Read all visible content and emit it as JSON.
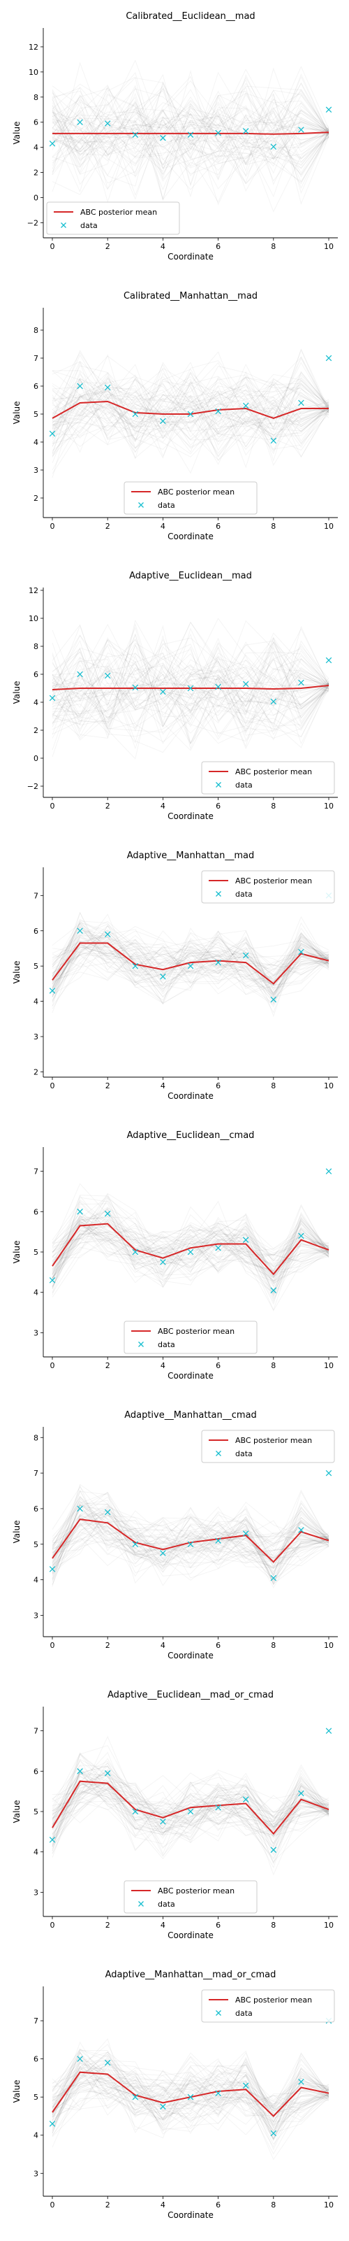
{
  "chart_data": [
    {
      "type": "line",
      "title": "Calibrated__Euclidean__mad",
      "xlabel": "Coordinate",
      "ylabel": "Value",
      "x": [
        0,
        1,
        2,
        3,
        4,
        5,
        6,
        7,
        8,
        9,
        10
      ],
      "xticks": [
        0,
        2,
        4,
        6,
        8,
        10
      ],
      "ylim": [
        -3.2,
        13.5
      ],
      "yticks": [
        -2,
        0,
        2,
        4,
        6,
        8,
        10,
        12
      ],
      "legend": "bottom-left",
      "series": [
        {
          "name": "ABC posterior mean",
          "kind": "line",
          "color": "#d62728",
          "values": [
            5.1,
            5.1,
            5.1,
            5.1,
            5.1,
            5.1,
            5.1,
            5.1,
            5.05,
            5.1,
            5.2
          ]
        },
        {
          "name": "data",
          "kind": "marker",
          "color": "#17becf",
          "values": [
            4.3,
            6.0,
            5.9,
            5.0,
            4.75,
            5.0,
            5.15,
            5.3,
            4.05,
            5.4,
            7.0
          ]
        }
      ],
      "band": {
        "values": [
          5.1,
          5.1,
          5.1,
          5.1,
          5.1,
          5.1,
          5.1,
          5.1,
          5.05,
          5.1,
          5.2
        ],
        "spread": [
          6.5,
          6.5,
          6.5,
          6.5,
          6.5,
          6.5,
          6.5,
          6.5,
          6.5,
          6.5,
          0.6
        ]
      }
    },
    {
      "type": "line",
      "title": "Calibrated__Manhattan__mad",
      "xlabel": "Coordinate",
      "ylabel": "Value",
      "x": [
        0,
        1,
        2,
        3,
        4,
        5,
        6,
        7,
        8,
        9,
        10
      ],
      "xticks": [
        0,
        2,
        4,
        6,
        8,
        10
      ],
      "ylim": [
        1.3,
        8.8
      ],
      "yticks": [
        2,
        3,
        4,
        5,
        6,
        7,
        8
      ],
      "legend": "bottom-center",
      "series": [
        {
          "name": "ABC posterior mean",
          "kind": "line",
          "color": "#d62728",
          "values": [
            4.85,
            5.4,
            5.45,
            5.05,
            5.0,
            5.0,
            5.15,
            5.2,
            4.85,
            5.2,
            5.2
          ]
        },
        {
          "name": "data",
          "kind": "marker",
          "color": "#17becf",
          "values": [
            4.3,
            6.0,
            5.95,
            5.0,
            4.75,
            5.0,
            5.1,
            5.3,
            4.05,
            5.4,
            7.0
          ]
        }
      ],
      "band": {
        "values": [
          4.85,
          5.4,
          5.45,
          5.05,
          5.0,
          5.0,
          5.15,
          5.2,
          4.85,
          5.2,
          5.2
        ],
        "spread": [
          2.5,
          2.5,
          2.5,
          2.5,
          2.5,
          2.5,
          2.5,
          2.5,
          2.5,
          2.5,
          0.4
        ]
      }
    },
    {
      "type": "line",
      "title": "Adaptive__Euclidean__mad",
      "xlabel": "Coordinate",
      "ylabel": "Value",
      "x": [
        0,
        1,
        2,
        3,
        4,
        5,
        6,
        7,
        8,
        9,
        10
      ],
      "xticks": [
        0,
        2,
        4,
        6,
        8,
        10
      ],
      "ylim": [
        -2.8,
        12.2
      ],
      "yticks": [
        -2,
        0,
        2,
        4,
        6,
        8,
        10,
        12
      ],
      "legend": "bottom-right",
      "series": [
        {
          "name": "ABC posterior mean",
          "kind": "line",
          "color": "#d62728",
          "values": [
            4.9,
            5.0,
            5.0,
            5.0,
            5.0,
            5.0,
            5.0,
            5.0,
            4.95,
            5.0,
            5.2
          ]
        },
        {
          "name": "data",
          "kind": "marker",
          "color": "#17becf",
          "values": [
            4.3,
            6.0,
            5.9,
            5.05,
            4.75,
            5.0,
            5.1,
            5.3,
            4.05,
            5.4,
            7.0
          ]
        }
      ],
      "band": {
        "values": [
          4.9,
          5.0,
          5.0,
          5.0,
          5.0,
          5.0,
          5.0,
          5.0,
          4.95,
          5.0,
          5.2
        ],
        "spread": [
          6.0,
          6.0,
          6.0,
          6.0,
          6.0,
          6.0,
          6.0,
          6.0,
          6.0,
          6.0,
          0.6
        ]
      }
    },
    {
      "type": "line",
      "title": "Adaptive__Manhattan__mad",
      "xlabel": "Coordinate",
      "ylabel": "Value",
      "x": [
        0,
        1,
        2,
        3,
        4,
        5,
        6,
        7,
        8,
        9,
        10
      ],
      "xticks": [
        0,
        2,
        4,
        6,
        8,
        10
      ],
      "ylim": [
        1.85,
        7.8
      ],
      "yticks": [
        2,
        3,
        4,
        5,
        6,
        7
      ],
      "legend": "top-right",
      "series": [
        {
          "name": "ABC posterior mean",
          "kind": "line",
          "color": "#d62728",
          "values": [
            4.6,
            5.65,
            5.65,
            5.05,
            4.9,
            5.1,
            5.15,
            5.1,
            4.5,
            5.35,
            5.15
          ]
        },
        {
          "name": "data",
          "kind": "marker",
          "color": "#17becf",
          "values": [
            4.3,
            6.0,
            5.9,
            5.0,
            4.7,
            5.0,
            5.1,
            5.3,
            4.05,
            5.4,
            7.0
          ]
        }
      ],
      "band": {
        "values": [
          4.6,
          5.65,
          5.65,
          5.05,
          4.9,
          5.1,
          5.15,
          5.1,
          4.5,
          5.35,
          5.15
        ],
        "spread": [
          1.3,
          1.3,
          1.3,
          1.3,
          1.3,
          1.3,
          1.3,
          1.3,
          1.3,
          1.3,
          0.35
        ]
      }
    },
    {
      "type": "line",
      "title": "Adaptive__Euclidean__cmad",
      "xlabel": "Coordinate",
      "ylabel": "Value",
      "x": [
        0,
        1,
        2,
        3,
        4,
        5,
        6,
        7,
        8,
        9,
        10
      ],
      "xticks": [
        0,
        2,
        4,
        6,
        8,
        10
      ],
      "ylim": [
        2.4,
        7.6
      ],
      "yticks": [
        3,
        4,
        5,
        6,
        7
      ],
      "legend": "bottom-center",
      "series": [
        {
          "name": "ABC posterior mean",
          "kind": "line",
          "color": "#d62728",
          "values": [
            4.65,
            5.65,
            5.7,
            5.05,
            4.85,
            5.1,
            5.2,
            5.2,
            4.45,
            5.3,
            5.05
          ]
        },
        {
          "name": "data",
          "kind": "marker",
          "color": "#17becf",
          "values": [
            4.3,
            6.0,
            5.95,
            5.0,
            4.75,
            5.0,
            5.1,
            5.3,
            4.05,
            5.4,
            7.0
          ]
        }
      ],
      "band": {
        "values": [
          4.65,
          5.65,
          5.7,
          5.05,
          4.85,
          5.1,
          5.2,
          5.2,
          4.45,
          5.3,
          5.05
        ],
        "spread": [
          1.2,
          1.2,
          1.2,
          1.2,
          1.2,
          1.2,
          1.2,
          1.2,
          1.2,
          1.2,
          0.3
        ]
      }
    },
    {
      "type": "line",
      "title": "Adaptive__Manhattan__cmad",
      "xlabel": "Coordinate",
      "ylabel": "Value",
      "x": [
        0,
        1,
        2,
        3,
        4,
        5,
        6,
        7,
        8,
        9,
        10
      ],
      "xticks": [
        0,
        2,
        4,
        6,
        8,
        10
      ],
      "ylim": [
        2.4,
        8.3
      ],
      "yticks": [
        3,
        4,
        5,
        6,
        7,
        8
      ],
      "legend": "top-right",
      "series": [
        {
          "name": "ABC posterior mean",
          "kind": "line",
          "color": "#d62728",
          "values": [
            4.6,
            5.7,
            5.6,
            5.05,
            4.85,
            5.05,
            5.15,
            5.25,
            4.5,
            5.35,
            5.1
          ]
        },
        {
          "name": "data",
          "kind": "marker",
          "color": "#17becf",
          "values": [
            4.3,
            6.0,
            5.9,
            5.0,
            4.75,
            5.0,
            5.1,
            5.3,
            4.05,
            5.4,
            7.0
          ]
        }
      ],
      "band": {
        "values": [
          4.6,
          5.7,
          5.6,
          5.05,
          4.85,
          5.05,
          5.15,
          5.25,
          4.5,
          5.35,
          5.1
        ],
        "spread": [
          1.3,
          1.3,
          1.3,
          1.3,
          1.3,
          1.3,
          1.3,
          1.3,
          1.3,
          1.3,
          0.3
        ]
      }
    },
    {
      "type": "line",
      "title": "Adaptive__Euclidean__mad_or_cmad",
      "xlabel": "Coordinate",
      "ylabel": "Value",
      "x": [
        0,
        1,
        2,
        3,
        4,
        5,
        6,
        7,
        8,
        9,
        10
      ],
      "xticks": [
        0,
        2,
        4,
        6,
        8,
        10
      ],
      "ylim": [
        2.4,
        7.6
      ],
      "yticks": [
        3,
        4,
        5,
        6,
        7
      ],
      "legend": "bottom-center",
      "series": [
        {
          "name": "ABC posterior mean",
          "kind": "line",
          "color": "#d62728",
          "values": [
            4.6,
            5.75,
            5.7,
            5.05,
            4.85,
            5.1,
            5.15,
            5.2,
            4.45,
            5.3,
            5.05
          ]
        },
        {
          "name": "data",
          "kind": "marker",
          "color": "#17becf",
          "values": [
            4.3,
            6.0,
            5.95,
            5.0,
            4.75,
            5.0,
            5.1,
            5.3,
            4.05,
            5.45,
            7.0
          ]
        }
      ],
      "band": {
        "values": [
          4.6,
          5.75,
          5.7,
          5.05,
          4.85,
          5.1,
          5.15,
          5.2,
          4.45,
          5.3,
          5.05
        ],
        "spread": [
          1.2,
          1.2,
          1.2,
          1.2,
          1.2,
          1.2,
          1.2,
          1.2,
          1.2,
          1.2,
          0.3
        ]
      }
    },
    {
      "type": "line",
      "title": "Adaptive__Manhattan__mad_or_cmad",
      "xlabel": "Coordinate",
      "ylabel": "Value",
      "x": [
        0,
        1,
        2,
        3,
        4,
        5,
        6,
        7,
        8,
        9,
        10
      ],
      "xticks": [
        0,
        2,
        4,
        6,
        8,
        10
      ],
      "ylim": [
        2.4,
        7.9
      ],
      "yticks": [
        3,
        4,
        5,
        6,
        7
      ],
      "legend": "top-right",
      "series": [
        {
          "name": "ABC posterior mean",
          "kind": "line",
          "color": "#d62728",
          "values": [
            4.6,
            5.65,
            5.6,
            5.05,
            4.85,
            5.0,
            5.15,
            5.2,
            4.5,
            5.25,
            5.1
          ]
        },
        {
          "name": "data",
          "kind": "marker",
          "color": "#17becf",
          "values": [
            4.3,
            6.0,
            5.9,
            5.0,
            4.75,
            5.0,
            5.1,
            5.3,
            4.05,
            5.4,
            7.0
          ]
        }
      ],
      "band": {
        "values": [
          4.6,
          5.65,
          5.6,
          5.05,
          4.85,
          5.0,
          5.15,
          5.2,
          4.5,
          5.25,
          5.1
        ],
        "spread": [
          1.3,
          1.3,
          1.3,
          1.3,
          1.3,
          1.3,
          1.3,
          1.3,
          1.3,
          1.3,
          0.3
        ]
      }
    }
  ]
}
